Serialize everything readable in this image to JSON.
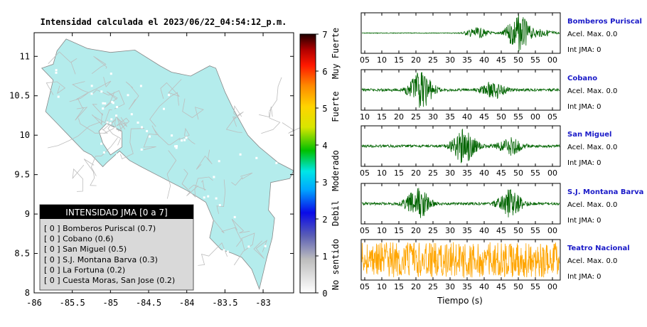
{
  "header": {
    "title": "Intensidad calculada el 2023/06/22_04:54:12_p.m."
  },
  "map": {
    "x_ticks": [
      "-86",
      "-85.5",
      "-85",
      "-84.5",
      "-84",
      "-83.5",
      "-83"
    ],
    "y_ticks": [
      "11",
      "10.5",
      "10",
      "9.5",
      "9",
      "8.5",
      "8"
    ],
    "xlim": [
      -86,
      -82.6
    ],
    "ylim": [
      8,
      11.3
    ],
    "land_color": "#b4ecec",
    "road_color": "#bdbdbd",
    "legend": {
      "title": "INTENSIDAD JMA [0 a 7]",
      "items": [
        "[ 0 ]  Bomberos Puriscal (0.7)",
        "[ 0 ]  Cobano (0.6)",
        "[ 0 ]  San Miguel (0.5)",
        "[ 0 ]  S.J. Montana Barva (0.3)",
        "[ 0 ]  La Fortuna (0.2)",
        "[ 0 ]  Cuesta Moras, San Jose (0.2)"
      ]
    }
  },
  "colorbar": {
    "ticks": [
      "7",
      "6",
      "5",
      "4",
      "3",
      "2",
      "1",
      "0"
    ],
    "range": [
      0,
      7
    ],
    "categories": [
      "Muy Fuerte",
      "Fuerte",
      "Moderado",
      "Debil",
      "No sentido"
    ]
  },
  "waveforms": {
    "xlabel": "Tiempo (s)",
    "stations": [
      {
        "name": "Bomberos Puriscal",
        "accel": "Acel. Max. 0.0",
        "jma": "Int JMA: 0",
        "color": "#006400",
        "ticks": [
          "05",
          "10",
          "15",
          "20",
          "25",
          "30",
          "35",
          "40",
          "45",
          "50",
          "55",
          "00"
        ]
      },
      {
        "name": "Cobano",
        "accel": "Acel. Max. 0.0",
        "jma": "Int JMA: 0",
        "color": "#006400",
        "ticks": [
          "10",
          "15",
          "20",
          "25",
          "30",
          "35",
          "40",
          "45",
          "50",
          "55",
          "00",
          "05"
        ]
      },
      {
        "name": "San Miguel",
        "accel": "Acel. Max. 0.0",
        "jma": "Int JMA: 0",
        "color": "#006400",
        "ticks": [
          "05",
          "10",
          "15",
          "20",
          "25",
          "30",
          "35",
          "40",
          "45",
          "50",
          "55",
          "00"
        ]
      },
      {
        "name": "S.J. Montana Barva",
        "accel": "Acel. Max. 0.0",
        "jma": "Int JMA: 0",
        "color": "#006400",
        "ticks": [
          "05",
          "10",
          "15",
          "20",
          "25",
          "30",
          "35",
          "40",
          "45",
          "50",
          "55",
          "00"
        ]
      },
      {
        "name": "Teatro Nacional",
        "accel": "Acel. Max. 0.0",
        "jma": "Int JMA: 0",
        "color": "#ffa500",
        "ticks": [
          "05",
          "10",
          "15",
          "20",
          "25",
          "30",
          "35",
          "40",
          "45",
          "50",
          "55",
          "00"
        ]
      }
    ]
  },
  "chart_data": [
    {
      "type": "map",
      "title": "Intensidad calculada el 2023/06/22_04:54:12_p.m.",
      "xlim": [
        -86,
        -82.6
      ],
      "ylim": [
        8,
        11.3
      ],
      "x_ticks": [
        -86,
        -85.5,
        -85,
        -84.5,
        -84,
        -83.5,
        -83
      ],
      "y_ticks": [
        8,
        8.5,
        9,
        9.5,
        10,
        10.5,
        11
      ],
      "legend_title": "INTENSIDAD JMA [0 a 7]",
      "stations": [
        {
          "name": "Bomberos Puriscal",
          "jma": 0,
          "value": 0.7
        },
        {
          "name": "Cobano",
          "jma": 0,
          "value": 0.6
        },
        {
          "name": "San Miguel",
          "jma": 0,
          "value": 0.5
        },
        {
          "name": "S.J. Montana Barva",
          "jma": 0,
          "value": 0.3
        },
        {
          "name": "La Fortuna",
          "jma": 0,
          "value": 0.2
        },
        {
          "name": "Cuesta Moras, San Jose",
          "jma": 0,
          "value": 0.2
        }
      ],
      "colorbar": {
        "min": 0,
        "max": 7,
        "labels": [
          "No sentido",
          "Debil",
          "Moderado",
          "Fuerte",
          "Muy Fuerte"
        ]
      }
    },
    {
      "type": "line",
      "xlabel": "Tiempo (s)",
      "series": [
        {
          "name": "Bomberos Puriscal",
          "accel_max": 0.0,
          "int_jma": 0,
          "bursts": [
            {
              "t": 35,
              "amp": 0.28
            },
            {
              "t": 47.5,
              "amp": 1.0
            },
            {
              "t": 55,
              "amp": 0.18
            }
          ]
        },
        {
          "name": "Cobano",
          "accel_max": 0.0,
          "int_jma": 0,
          "bursts": [
            {
              "t": 18,
              "amp": 0.95
            },
            {
              "t": 40,
              "amp": 0.45
            }
          ]
        },
        {
          "name": "San Miguel",
          "accel_max": 0.0,
          "int_jma": 0,
          "bursts": [
            {
              "t": 31,
              "amp": 0.9
            },
            {
              "t": 45,
              "amp": 0.45
            }
          ]
        },
        {
          "name": "S.J. Montana Barva",
          "accel_max": 0.0,
          "int_jma": 0,
          "bursts": [
            {
              "t": 17,
              "amp": 0.85
            },
            {
              "t": 45,
              "amp": 0.7
            }
          ]
        },
        {
          "name": "Teatro Nacional",
          "accel_max": 0.0,
          "int_jma": 0,
          "bursts": [
            {
              "t": 5,
              "amp": 0.8
            },
            {
              "t": 30,
              "amp": 0.9
            },
            {
              "t": 55,
              "amp": 1.0
            }
          ]
        }
      ]
    }
  ]
}
